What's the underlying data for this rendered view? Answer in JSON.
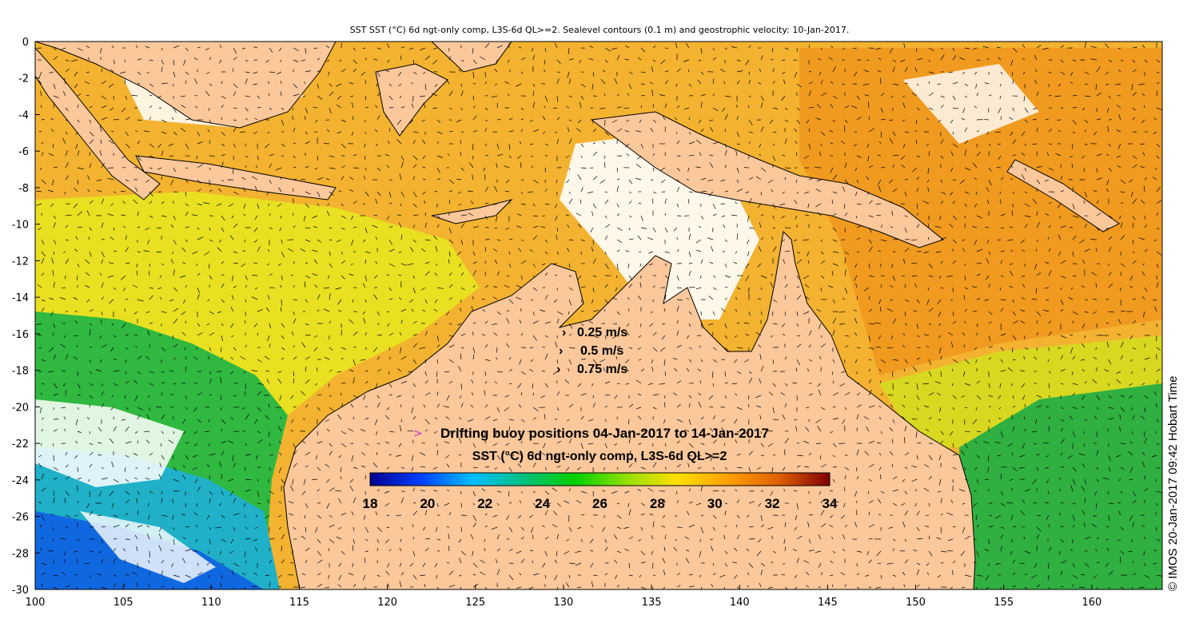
{
  "title": "SST SST (°C) 6d ngt-only comp, L3S-6d QL>=2. Sealevel contours (0.1 m) and geostrophic velocity: 10-Jan-2017.",
  "credit": "© IMOS 20-Jan-2017 09:42 Hobart Time",
  "velocity_legend": {
    "items": [
      {
        "label": "0.25 m/s",
        "speed": 0.25
      },
      {
        "label": "0.5 m/s",
        "speed": 0.5
      },
      {
        "label": "0.75 m/s",
        "speed": 0.75
      }
    ]
  },
  "buoy_legend": {
    "symbol": ">",
    "label": "Drifting buoy positions 04-Jan-2017 to 14-Jan-2017",
    "symbol_color": "#cc33cc"
  },
  "colorbar": {
    "label": "SST (°C) 6d ngt-only comp, L3S-6d QL>=2",
    "min": 18,
    "max": 34,
    "tick_labels": [
      "18",
      "20",
      "22",
      "24",
      "26",
      "28",
      "30",
      "32",
      "34"
    ],
    "colors": [
      "#00008f",
      "#0040ff",
      "#00bfff",
      "#00c080",
      "#00d000",
      "#90e000",
      "#ffe000",
      "#ffa000",
      "#e06000",
      "#800000"
    ]
  },
  "land_color": "#fbc89b",
  "coast_color": "#000000",
  "axes": {
    "lon_range": [
      100,
      164
    ],
    "lat_range": [
      -30,
      0
    ],
    "x_tick_labels": [
      "100",
      "105",
      "110",
      "115",
      "120",
      "125",
      "130",
      "135",
      "140",
      "145",
      "150",
      "155",
      "160"
    ],
    "y_tick_labels": [
      "0",
      "-2",
      "-4",
      "-6",
      "-8",
      "-10",
      "-12",
      "-14",
      "-16",
      "-18",
      "-20",
      "-22",
      "-24",
      "-26",
      "-28",
      "-30"
    ]
  }
}
